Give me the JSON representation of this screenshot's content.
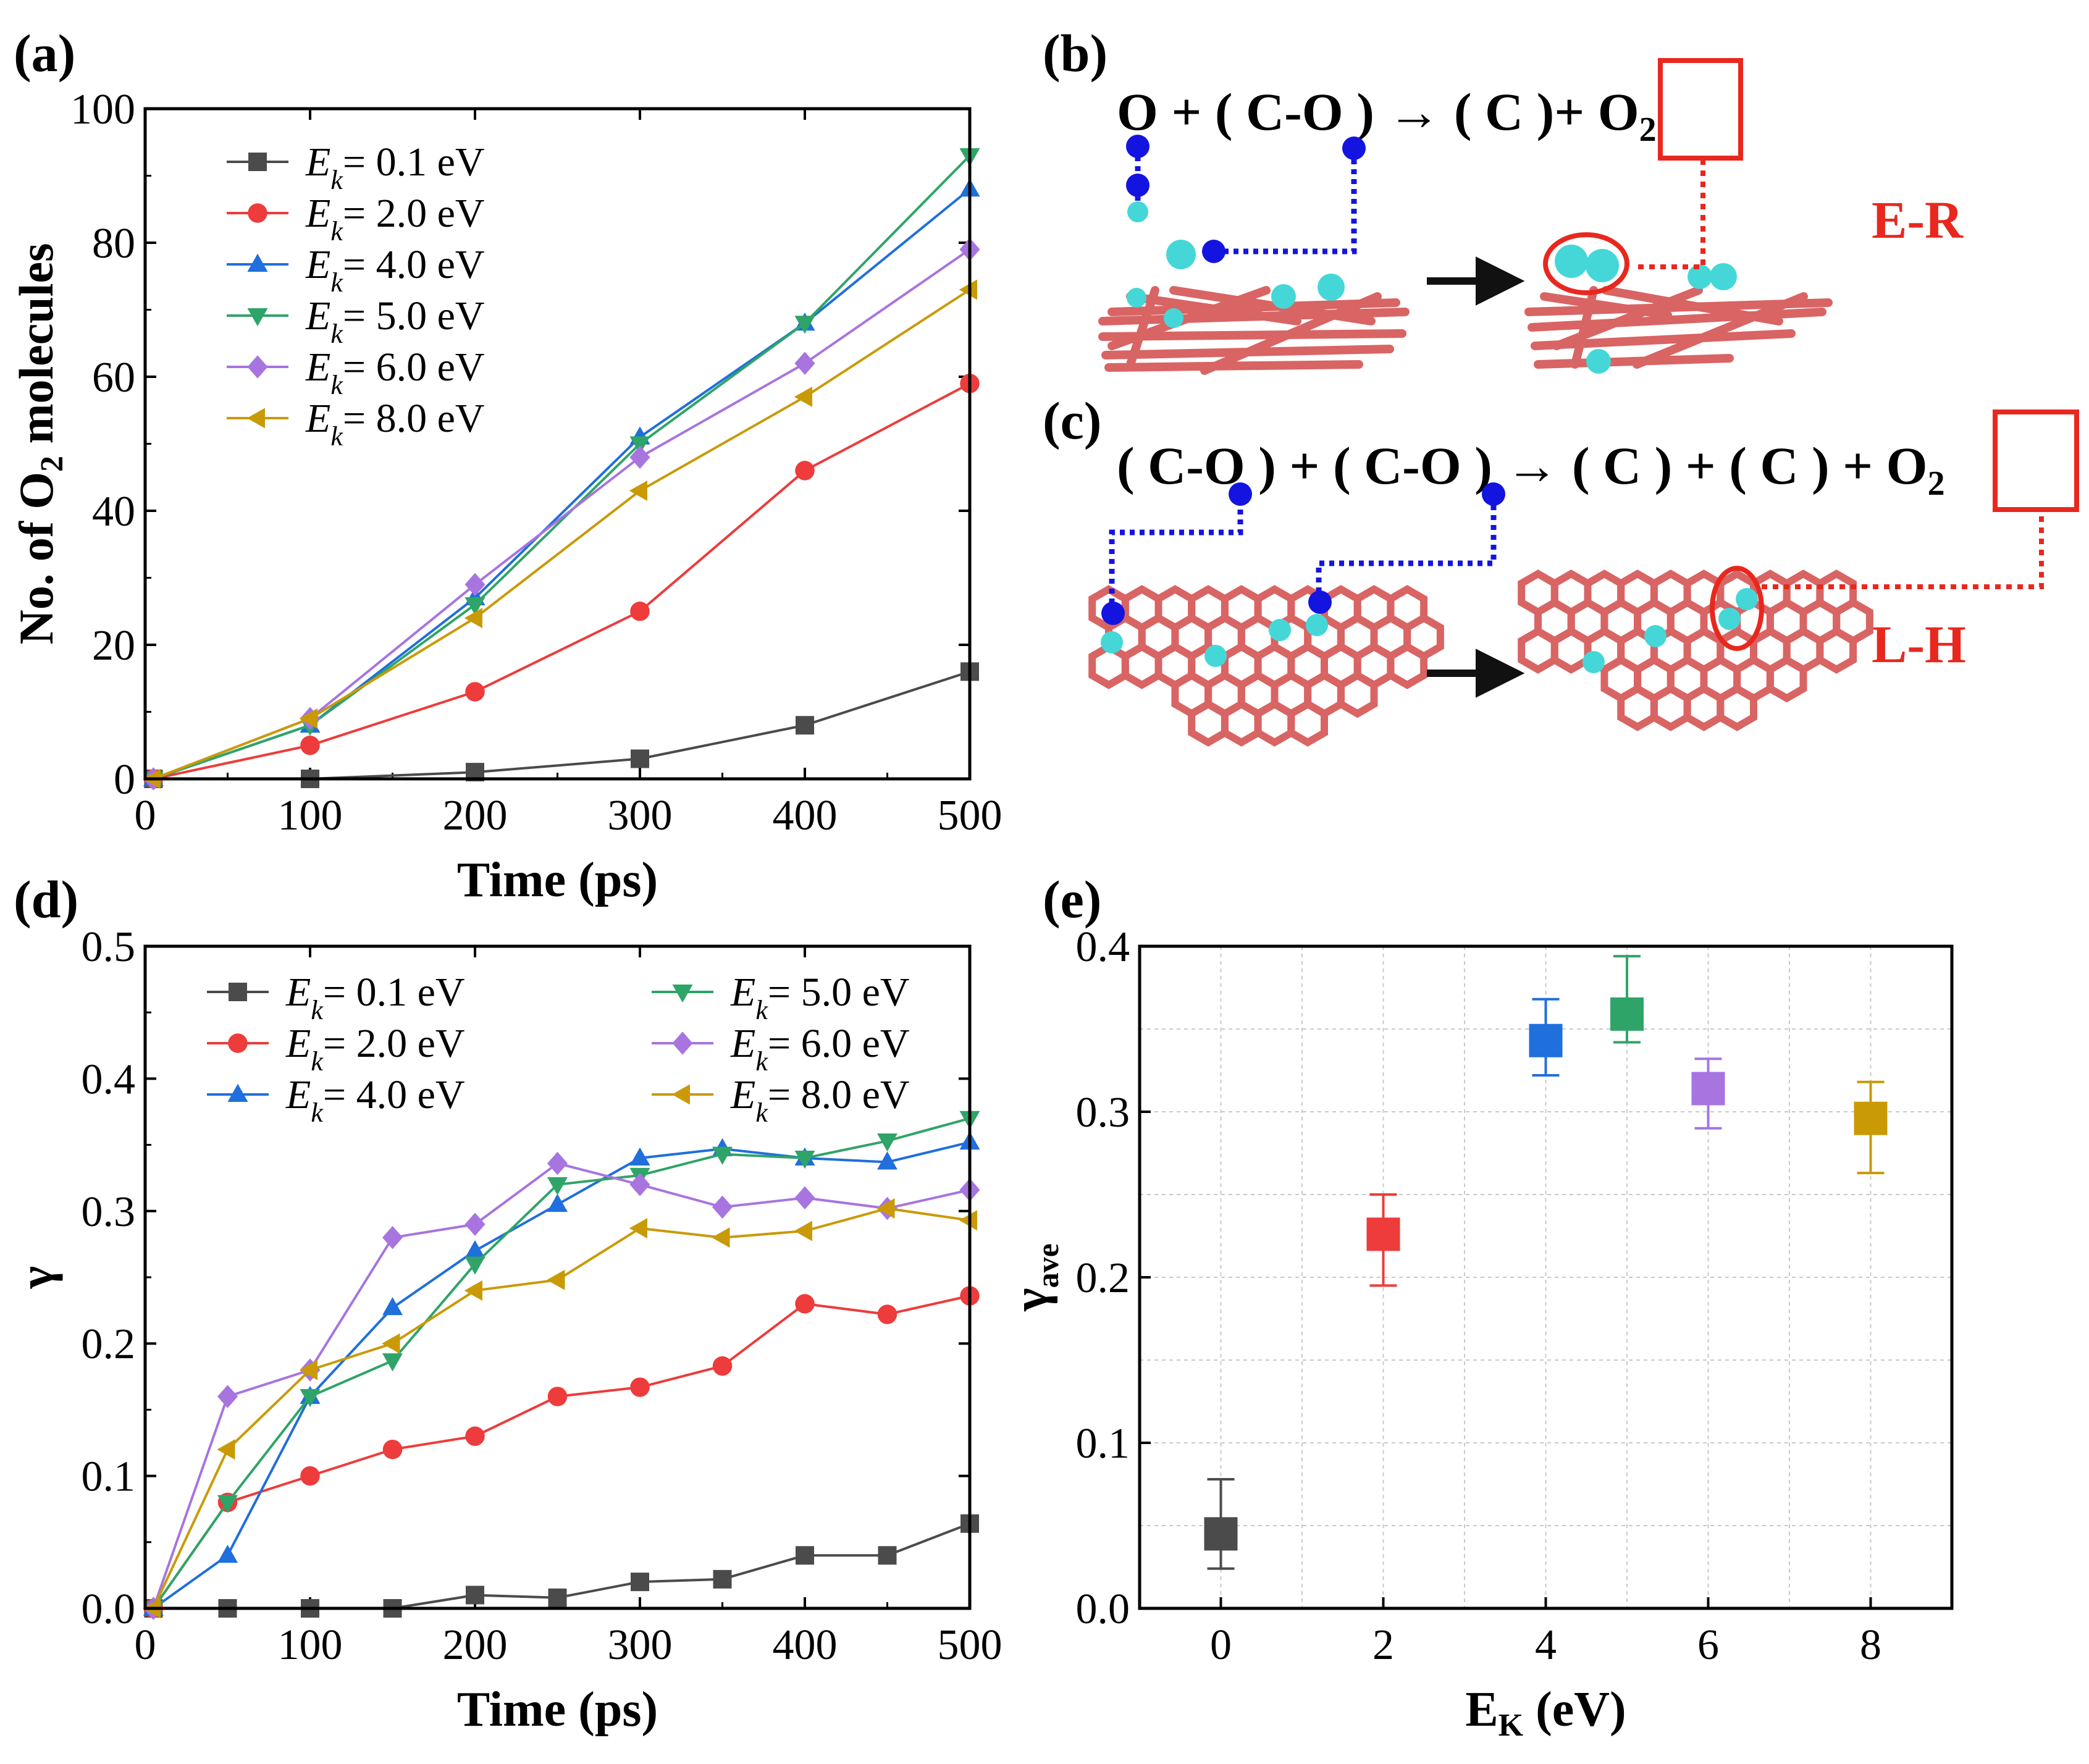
{
  "panel_labels": {
    "a": "(a)",
    "b": "(b)",
    "c": "(c)",
    "d": "(d)",
    "e": "(e)"
  },
  "schematics": {
    "b": {
      "equation": [
        {
          "t": "O"
        },
        {
          "t": " + ( C-"
        },
        {
          "t": "O"
        },
        {
          "t": " ) → ( C )+ "
        },
        {
          "t": "O"
        },
        {
          "t": "2",
          "sub": true
        }
      ],
      "mechanism": "E-R"
    },
    "c": {
      "equation": [
        {
          "t": "( C-"
        },
        {
          "t": "O"
        },
        {
          "t": " ) + ( C-"
        },
        {
          "t": "O"
        },
        {
          "t": " ) → ( C ) + ( C ) + "
        },
        {
          "t": "O"
        },
        {
          "t": "2",
          "sub": true
        }
      ],
      "mechanism": "L-H"
    }
  },
  "colors": {
    "Ek_0.1": "#4b4b4b",
    "Ek_2.0": "#ee3b3b",
    "Ek_4.0": "#1f6fdc",
    "Ek_5.0": "#2fa468",
    "Ek_6.0": "#a774e0",
    "Ek_8.0": "#c99a06",
    "graphene": "#d96464",
    "oxygen": "#45d7d7",
    "marker_blue": "#1414e0",
    "highlight_red": "#e8281e"
  },
  "chart_data": [
    {
      "id": "a",
      "type": "line",
      "xlabel": "Time (ps)",
      "ylabel": {
        "pre": "No. of O",
        "sub": "2",
        "post": " molecules"
      },
      "xlim": [
        0,
        500
      ],
      "ylim": [
        0,
        100
      ],
      "xticks": [
        0,
        100,
        200,
        300,
        400,
        500
      ],
      "yticks": [
        0,
        20,
        40,
        60,
        80,
        100
      ],
      "legend": {
        "prefix": "E",
        "sub": "k",
        "placement": "top-left"
      },
      "series": [
        {
          "name": "= 0.1 eV",
          "marker": "square",
          "color": "#4b4b4b",
          "x": [
            5,
            100,
            200,
            300,
            400,
            500
          ],
          "y": [
            0,
            0,
            1,
            3,
            8,
            16
          ]
        },
        {
          "name": "= 2.0 eV",
          "marker": "circle",
          "color": "#ee3b3b",
          "x": [
            5,
            100,
            200,
            300,
            400,
            500
          ],
          "y": [
            0,
            5,
            13,
            25,
            46,
            59
          ]
        },
        {
          "name": "= 4.0 eV",
          "marker": "triangle-up",
          "color": "#1f6fdc",
          "x": [
            5,
            100,
            200,
            300,
            400,
            500
          ],
          "y": [
            0,
            8,
            27,
            51,
            68,
            88
          ]
        },
        {
          "name": "= 5.0 eV",
          "marker": "triangle-down",
          "color": "#2fa468",
          "x": [
            5,
            100,
            200,
            300,
            400,
            500
          ],
          "y": [
            0,
            8,
            26,
            50,
            68,
            93
          ]
        },
        {
          "name": "= 6.0 eV",
          "marker": "diamond",
          "color": "#a774e0",
          "x": [
            5,
            100,
            200,
            300,
            400,
            500
          ],
          "y": [
            0,
            9,
            29,
            48,
            62,
            79
          ]
        },
        {
          "name": "= 8.0 eV",
          "marker": "triangle-left",
          "color": "#c99a06",
          "x": [
            5,
            100,
            200,
            300,
            400,
            500
          ],
          "y": [
            0,
            9,
            24,
            43,
            57,
            73
          ]
        }
      ]
    },
    {
      "id": "d",
      "type": "line",
      "xlabel": "Time (ps)",
      "ylabel": "γ",
      "xlim": [
        0,
        500
      ],
      "ylim": [
        0,
        0.5
      ],
      "xticks": [
        0,
        100,
        200,
        300,
        400,
        500
      ],
      "yticks": [
        "0.0",
        "0.1",
        "0.2",
        "0.3",
        "0.4",
        "0.5"
      ],
      "legend": {
        "prefix": "E",
        "sub": "k",
        "placement": "top-left, two columns"
      },
      "series": [
        {
          "name": "= 0.1 eV",
          "marker": "square",
          "color": "#4b4b4b",
          "x": [
            5,
            50,
            100,
            150,
            200,
            250,
            300,
            350,
            400,
            450,
            500
          ],
          "y": [
            0,
            0,
            0,
            0,
            0.01,
            0.008,
            0.02,
            0.022,
            0.04,
            0.04,
            0.064
          ]
        },
        {
          "name": "= 2.0 eV",
          "marker": "circle",
          "color": "#ee3b3b",
          "x": [
            5,
            50,
            100,
            150,
            200,
            250,
            300,
            350,
            400,
            450,
            500
          ],
          "y": [
            0,
            0.08,
            0.1,
            0.12,
            0.13,
            0.16,
            0.167,
            0.183,
            0.23,
            0.222,
            0.236
          ]
        },
        {
          "name": "= 4.0 eV",
          "marker": "triangle-up",
          "color": "#1f6fdc",
          "x": [
            5,
            50,
            100,
            150,
            200,
            250,
            300,
            350,
            400,
            450,
            500
          ],
          "y": [
            0,
            0.04,
            0.16,
            0.227,
            0.27,
            0.305,
            0.34,
            0.347,
            0.34,
            0.337,
            0.352
          ]
        },
        {
          "name": "= 5.0 eV",
          "marker": "triangle-down",
          "color": "#2fa468",
          "x": [
            5,
            50,
            100,
            150,
            200,
            250,
            300,
            350,
            400,
            450,
            500
          ],
          "y": [
            0,
            0.08,
            0.16,
            0.187,
            0.26,
            0.32,
            0.327,
            0.343,
            0.34,
            0.353,
            0.37
          ]
        },
        {
          "name": "= 6.0 eV",
          "marker": "diamond",
          "color": "#a774e0",
          "x": [
            5,
            50,
            100,
            150,
            200,
            250,
            300,
            350,
            400,
            450,
            500
          ],
          "y": [
            0,
            0.16,
            0.18,
            0.28,
            0.29,
            0.336,
            0.32,
            0.303,
            0.31,
            0.302,
            0.316
          ]
        },
        {
          "name": "= 8.0 eV",
          "marker": "triangle-left",
          "color": "#c99a06",
          "x": [
            5,
            50,
            100,
            150,
            200,
            250,
            300,
            350,
            400,
            450,
            500
          ],
          "y": [
            0,
            0.12,
            0.18,
            0.2,
            0.24,
            0.248,
            0.287,
            0.28,
            0.285,
            0.302,
            0.293
          ]
        }
      ]
    },
    {
      "id": "e",
      "type": "scatter",
      "xlabel": {
        "pre": "E",
        "sub": "K",
        "post": " (eV)"
      },
      "ylabel": {
        "pre": "γ",
        "sub": "ave",
        "post": ""
      },
      "xlim": [
        -1,
        9
      ],
      "ylim": [
        0,
        0.4
      ],
      "xticks": [
        0,
        2,
        4,
        6,
        8
      ],
      "yticks": [
        "0.0",
        "0.1",
        "0.2",
        "0.3",
        "0.4"
      ],
      "grid": true,
      "points": [
        {
          "x": 0,
          "y": 0.045,
          "err_low": 0.024,
          "err_high": 0.078,
          "color": "#4b4b4b"
        },
        {
          "x": 2,
          "y": 0.226,
          "err_low": 0.195,
          "err_high": 0.25,
          "color": "#ee3b3b"
        },
        {
          "x": 4,
          "y": 0.343,
          "err_low": 0.322,
          "err_high": 0.368,
          "color": "#1f6fdc"
        },
        {
          "x": 5,
          "y": 0.359,
          "err_low": 0.342,
          "err_high": 0.394,
          "color": "#2fa468"
        },
        {
          "x": 6,
          "y": 0.314,
          "err_low": 0.29,
          "err_high": 0.332,
          "color": "#a774e0"
        },
        {
          "x": 8,
          "y": 0.296,
          "err_low": 0.263,
          "err_high": 0.318,
          "color": "#c99a06"
        }
      ]
    }
  ]
}
